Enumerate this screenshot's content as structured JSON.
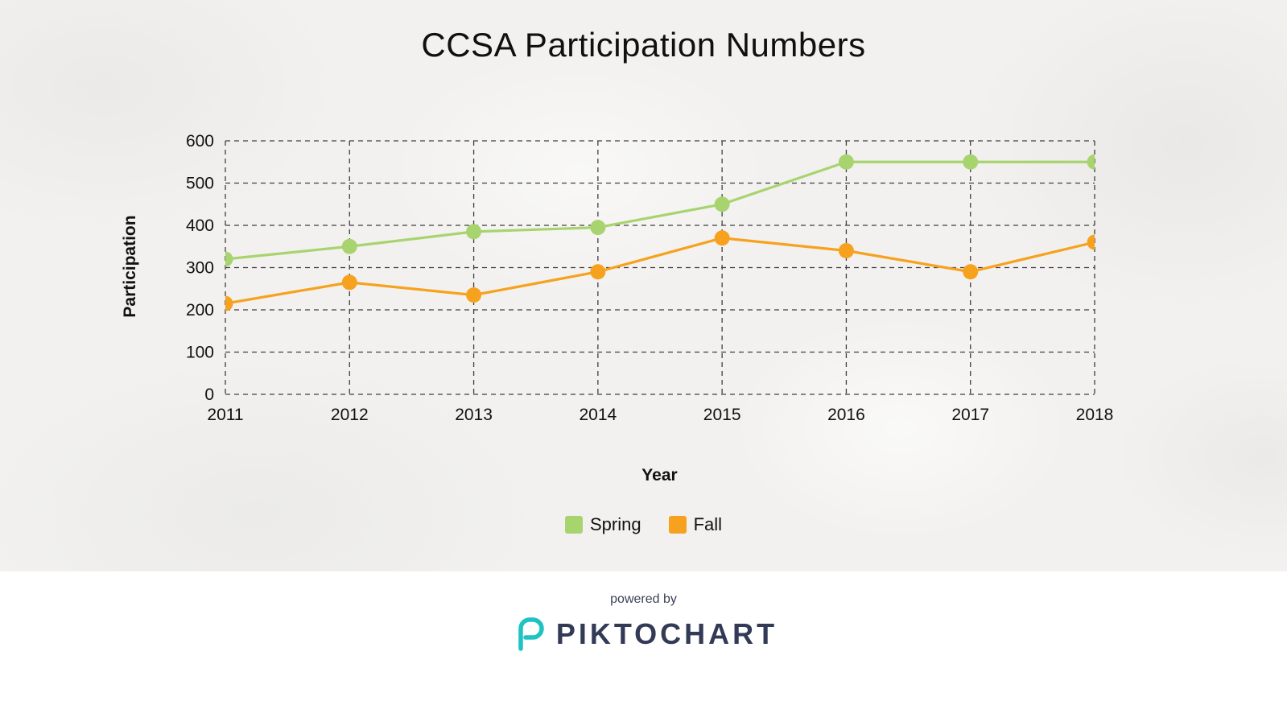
{
  "chart_data": {
    "type": "line",
    "title": "CCSA Participation Numbers",
    "xlabel": "Year",
    "ylabel": "Participation",
    "categories": [
      "2011",
      "2012",
      "2013",
      "2014",
      "2015",
      "2016",
      "2017",
      "2018"
    ],
    "series": [
      {
        "name": "Spring",
        "color": "#a8d46f",
        "values": [
          320,
          350,
          385,
          395,
          450,
          550,
          550,
          550
        ]
      },
      {
        "name": "Fall",
        "color": "#f6a21e",
        "values": [
          215,
          265,
          235,
          290,
          370,
          340,
          290,
          360
        ]
      }
    ],
    "ylim": [
      0,
      600
    ],
    "yticks": [
      0,
      100,
      200,
      300,
      400,
      500,
      600
    ],
    "grid": true,
    "legend_position": "bottom"
  },
  "footer": {
    "powered_by": "powered by",
    "brand": "PIKTOCHART"
  },
  "colors": {
    "grid": "#3f3f3f",
    "text": "#111111",
    "background": "#f2f1ef",
    "brand_navy": "#333a56",
    "brand_teal": "#1fc3c3"
  }
}
